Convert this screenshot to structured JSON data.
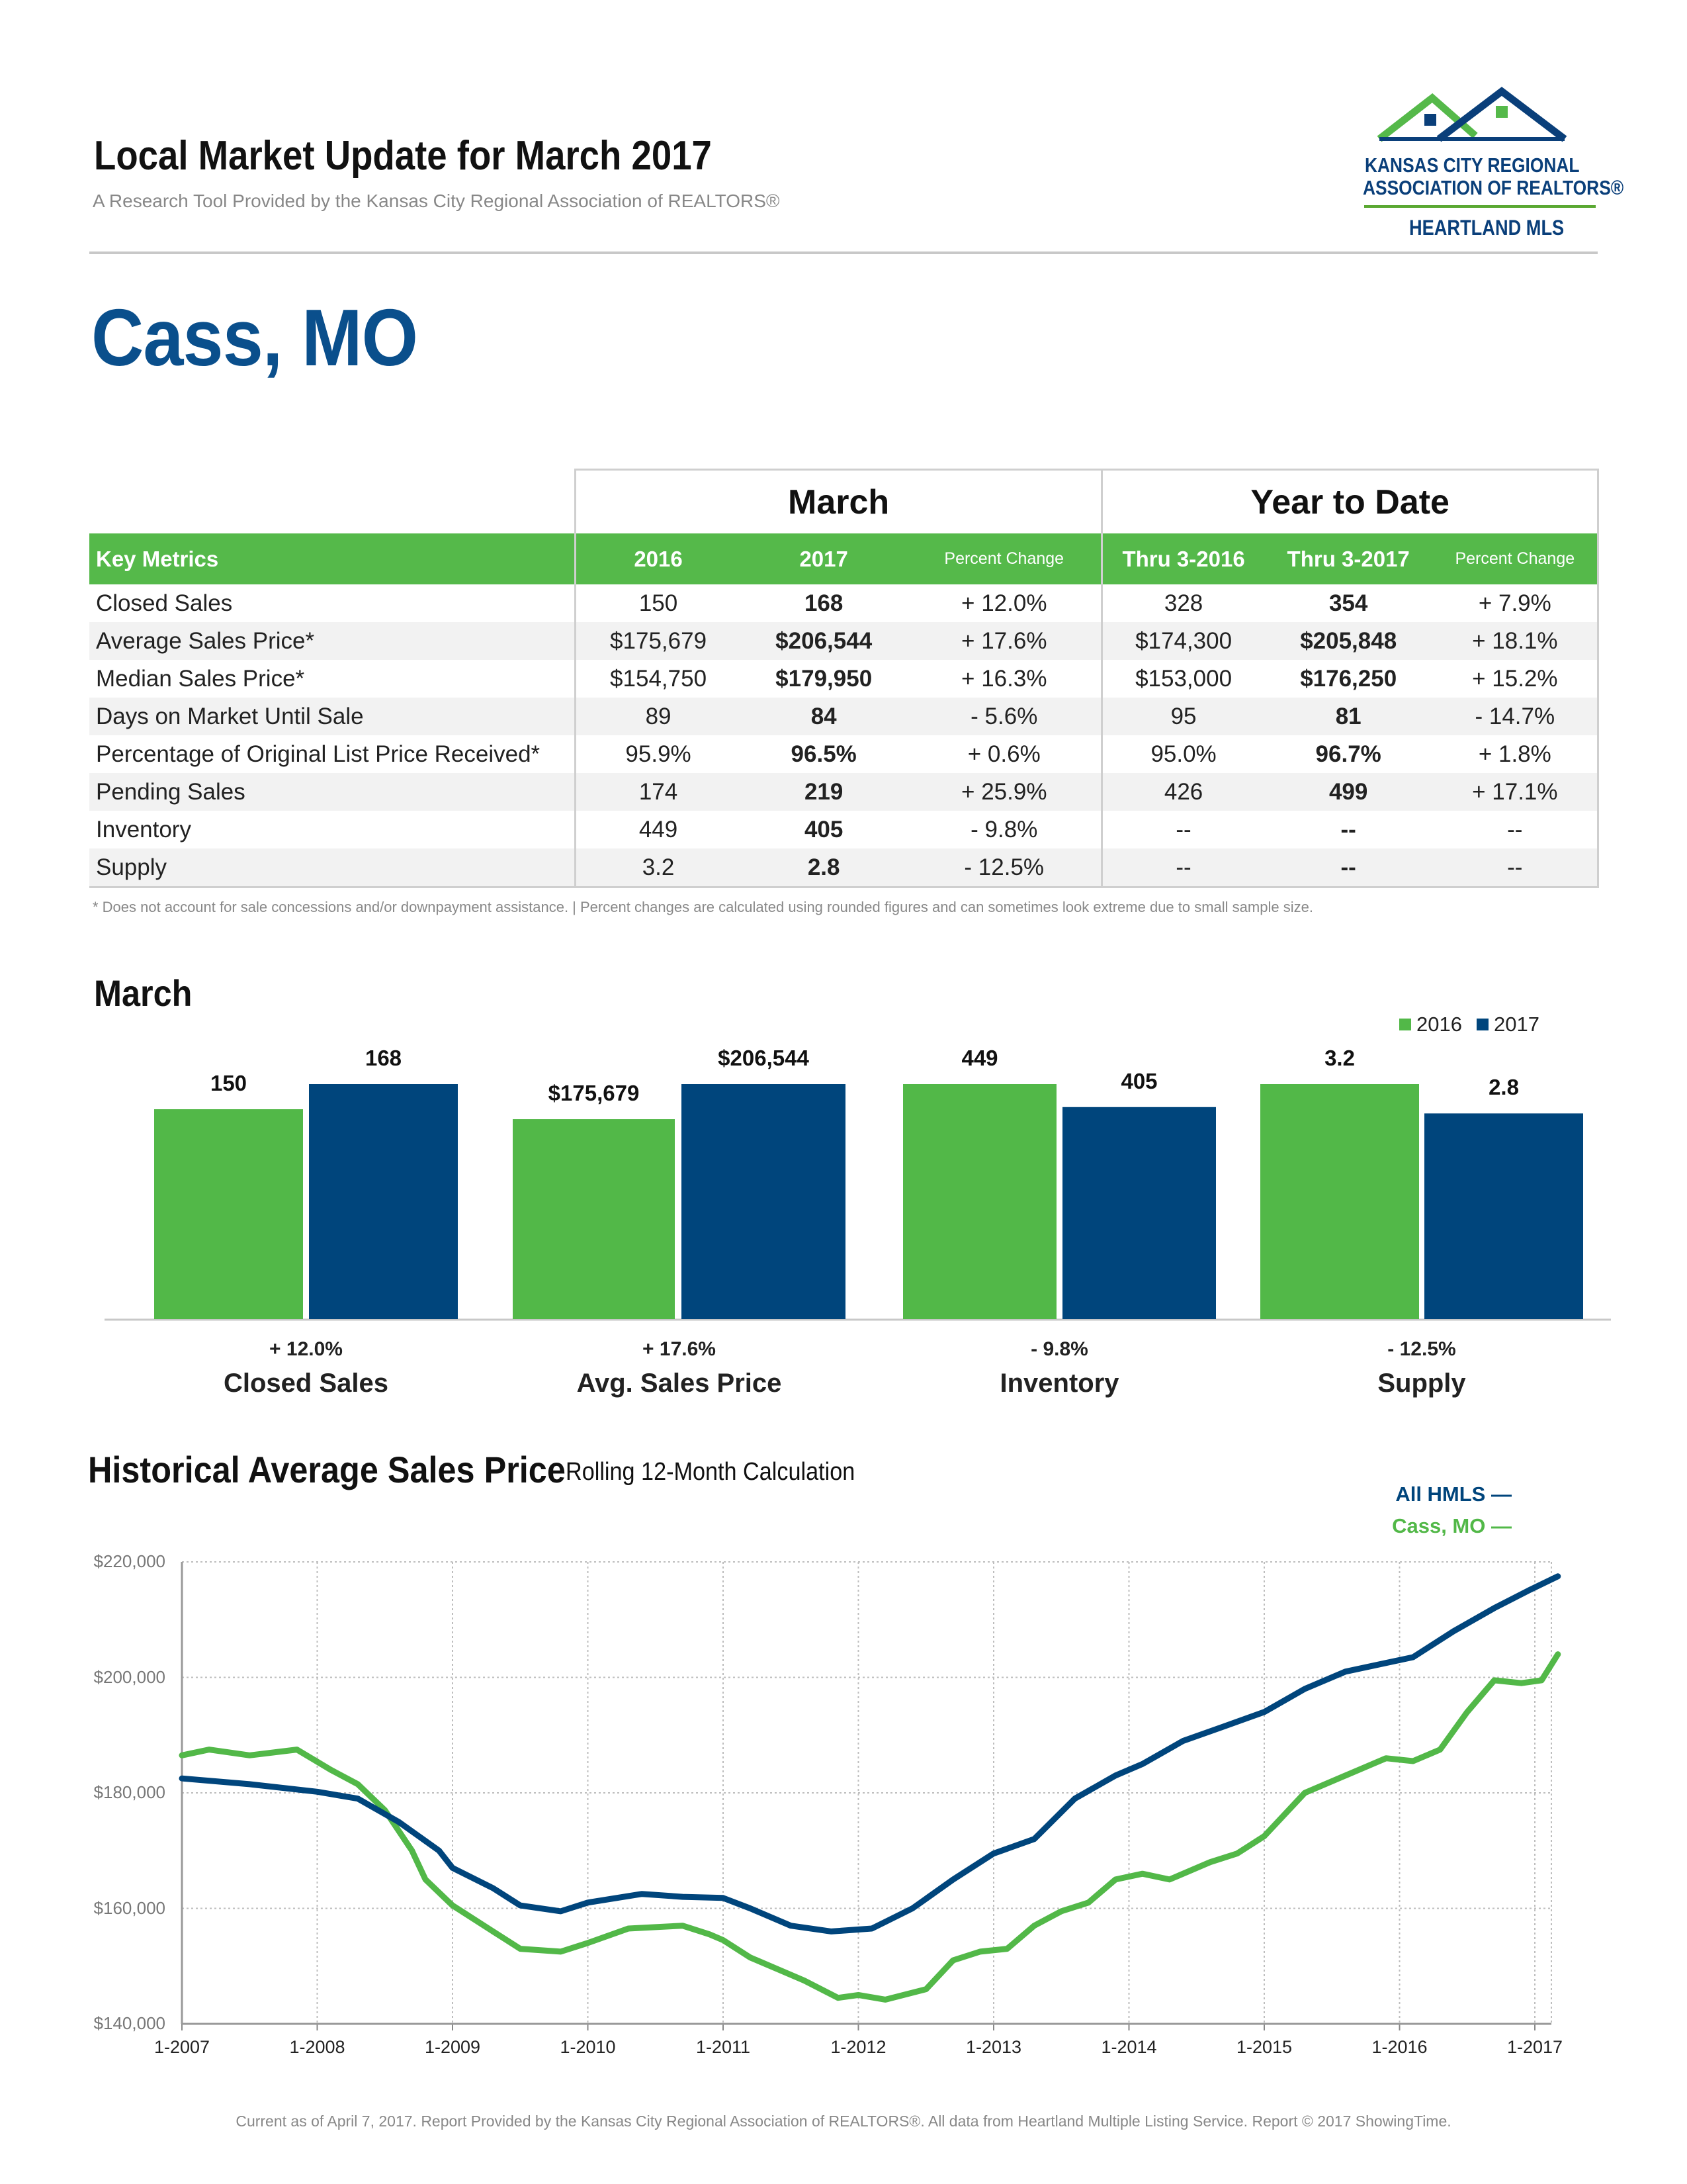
{
  "header": {
    "title": "Local Market Update for March 2017",
    "subtitle": "A Research Tool Provided by the Kansas City Regional Association of REALTORS®",
    "logo_line1": "KANSAS CITY REGIONAL",
    "logo_line2": "ASSOCIATION OF REALTORS®",
    "logo_line3": "HEARTLAND MLS"
  },
  "page_title": "Cass, MO",
  "table": {
    "group_month": "March",
    "group_ytd": "Year to Date",
    "headers": [
      "Key Metrics",
      "2016",
      "2017",
      "Percent Change",
      "Thru 3-2016",
      "Thru 3-2017",
      "Percent Change"
    ],
    "rows": [
      [
        "Closed Sales",
        "150",
        "168",
        "+ 12.0%",
        "328",
        "354",
        "+ 7.9%"
      ],
      [
        "Average Sales Price*",
        "$175,679",
        "$206,544",
        "+ 17.6%",
        "$174,300",
        "$205,848",
        "+ 18.1%"
      ],
      [
        "Median Sales Price*",
        "$154,750",
        "$179,950",
        "+ 16.3%",
        "$153,000",
        "$176,250",
        "+ 15.2%"
      ],
      [
        "Days on Market Until Sale",
        "89",
        "84",
        "- 5.6%",
        "95",
        "81",
        "- 14.7%"
      ],
      [
        "Percentage of Original List Price Received*",
        "95.9%",
        "96.5%",
        "+ 0.6%",
        "95.0%",
        "96.7%",
        "+ 1.8%"
      ],
      [
        "Pending Sales",
        "174",
        "219",
        "+ 25.9%",
        "426",
        "499",
        "+ 17.1%"
      ],
      [
        "Inventory",
        "449",
        "405",
        "- 9.8%",
        "--",
        "--",
        "--"
      ],
      [
        "Supply",
        "3.2",
        "2.8",
        "- 12.5%",
        "--",
        "--",
        "--"
      ]
    ],
    "footnote": "* Does not account for sale concessions and/or downpayment assistance.  |  Percent changes are calculated using rounded figures and can sometimes look extreme due to small sample size."
  },
  "chart_data": [
    {
      "type": "bar",
      "title": "March",
      "categories": [
        "Closed Sales",
        "Avg. Sales Price",
        "Inventory",
        "Supply"
      ],
      "series": [
        {
          "name": "2016",
          "values": [
            150,
            175679,
            449,
            3.2
          ],
          "labels": [
            "150",
            "$175,679",
            "449",
            "3.2"
          ],
          "color": "#52b848"
        },
        {
          "name": "2017",
          "values": [
            168,
            206544,
            405,
            2.8
          ],
          "labels": [
            "168",
            "$206,544",
            "405",
            "2.8"
          ],
          "color": "#00457c"
        }
      ],
      "percent_change": [
        "+ 12.0%",
        "+ 17.6%",
        "- 9.8%",
        "- 12.5%"
      ],
      "legend": "top-right"
    },
    {
      "type": "line",
      "title": "Historical Average Sales Price",
      "subtitle": "Rolling 12-Month Calculation",
      "xlabels": [
        "1-2007",
        "1-2008",
        "1-2009",
        "1-2010",
        "1-2011",
        "1-2012",
        "1-2013",
        "1-2014",
        "1-2015",
        "1-2016",
        "1-2017"
      ],
      "ylim": [
        140000,
        220000
      ],
      "yticks": [
        140000,
        160000,
        180000,
        200000,
        220000
      ],
      "ytick_labels": [
        "$140,000",
        "$160,000",
        "$180,000",
        "$200,000",
        "$220,000"
      ],
      "grid": true,
      "legend": "top-right",
      "series": [
        {
          "name": "All HMLS",
          "color": "#00457c",
          "points": [
            [
              2007.0,
              182500
            ],
            [
              2007.5,
              181500
            ],
            [
              2008.0,
              180200
            ],
            [
              2008.3,
              179000
            ],
            [
              2008.6,
              175000
            ],
            [
              2008.9,
              170000
            ],
            [
              2009.0,
              167000
            ],
            [
              2009.3,
              163500
            ],
            [
              2009.5,
              160500
            ],
            [
              2009.8,
              159500
            ],
            [
              2010.0,
              161000
            ],
            [
              2010.4,
              162500
            ],
            [
              2010.7,
              162000
            ],
            [
              2011.0,
              161800
            ],
            [
              2011.2,
              160000
            ],
            [
              2011.5,
              157000
            ],
            [
              2011.8,
              156000
            ],
            [
              2012.1,
              156500
            ],
            [
              2012.4,
              160000
            ],
            [
              2012.7,
              165000
            ],
            [
              2013.0,
              169500
            ],
            [
              2013.3,
              172000
            ],
            [
              2013.6,
              179000
            ],
            [
              2013.9,
              183000
            ],
            [
              2014.1,
              185000
            ],
            [
              2014.4,
              189000
            ],
            [
              2014.7,
              191500
            ],
            [
              2015.0,
              194000
            ],
            [
              2015.3,
              198000
            ],
            [
              2015.6,
              201000
            ],
            [
              2015.9,
              202500
            ],
            [
              2016.1,
              203500
            ],
            [
              2016.4,
              208000
            ],
            [
              2016.7,
              212000
            ],
            [
              2016.95,
              215000
            ],
            [
              2017.17,
              217500
            ]
          ]
        },
        {
          "name": "Cass, MO",
          "color": "#52b848",
          "points": [
            [
              2007.0,
              186500
            ],
            [
              2007.2,
              187500
            ],
            [
              2007.5,
              186500
            ],
            [
              2007.85,
              187500
            ],
            [
              2008.1,
              184000
            ],
            [
              2008.3,
              181500
            ],
            [
              2008.5,
              177000
            ],
            [
              2008.7,
              170000
            ],
            [
              2008.8,
              165000
            ],
            [
              2009.0,
              160500
            ],
            [
              2009.3,
              156000
            ],
            [
              2009.5,
              153000
            ],
            [
              2009.8,
              152500
            ],
            [
              2010.0,
              154000
            ],
            [
              2010.3,
              156500
            ],
            [
              2010.7,
              157000
            ],
            [
              2010.9,
              155500
            ],
            [
              2011.0,
              154500
            ],
            [
              2011.2,
              151500
            ],
            [
              2011.4,
              149500
            ],
            [
              2011.6,
              147500
            ],
            [
              2011.85,
              144500
            ],
            [
              2012.0,
              145000
            ],
            [
              2012.2,
              144200
            ],
            [
              2012.5,
              146000
            ],
            [
              2012.7,
              151000
            ],
            [
              2012.9,
              152500
            ],
            [
              2013.1,
              153000
            ],
            [
              2013.3,
              157000
            ],
            [
              2013.5,
              159500
            ],
            [
              2013.7,
              161000
            ],
            [
              2013.9,
              165000
            ],
            [
              2014.1,
              166000
            ],
            [
              2014.3,
              165000
            ],
            [
              2014.6,
              168000
            ],
            [
              2014.8,
              169500
            ],
            [
              2015.0,
              172500
            ],
            [
              2015.3,
              180000
            ],
            [
              2015.6,
              183000
            ],
            [
              2015.9,
              186000
            ],
            [
              2016.1,
              185500
            ],
            [
              2016.3,
              187500
            ],
            [
              2016.5,
              194000
            ],
            [
              2016.7,
              199500
            ],
            [
              2016.9,
              199000
            ],
            [
              2017.05,
              199500
            ],
            [
              2017.17,
              204000
            ]
          ]
        }
      ]
    }
  ],
  "footer": "Current as of April 7, 2017. Report Provided by the Kansas City Regional Association of REALTORS®. All data from Heartland Multiple Listing Service. Report © 2017 ShowingTime."
}
